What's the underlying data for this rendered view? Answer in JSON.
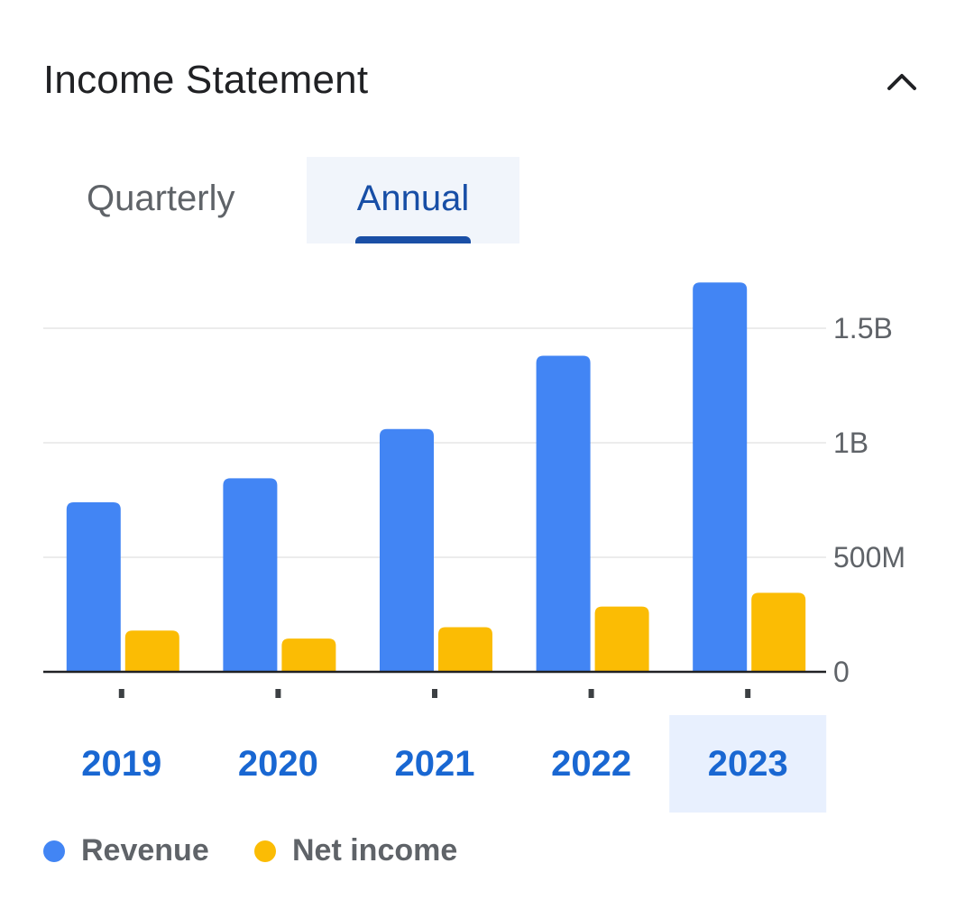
{
  "header": {
    "title": "Income Statement",
    "collapse_icon": "chevron-up-icon"
  },
  "tabs": [
    {
      "label": "Quarterly",
      "selected": false
    },
    {
      "label": "Annual",
      "selected": true
    }
  ],
  "colors": {
    "revenue": "#4285f4",
    "net_income": "#fbbc04",
    "selected_tab_bg": "#f1f5fb",
    "accent": "#1a4fa6"
  },
  "chart_data": {
    "type": "bar",
    "categories": [
      "2019",
      "2020",
      "2021",
      "2022",
      "2023"
    ],
    "selected_category": "2023",
    "series": [
      {
        "name": "Revenue",
        "color": "#4285f4",
        "values": [
          740000000,
          845000000,
          1060000000,
          1380000000,
          1700000000
        ]
      },
      {
        "name": "Net income",
        "color": "#fbbc04",
        "values": [
          180000000,
          145000000,
          195000000,
          285000000,
          345000000
        ]
      }
    ],
    "y_ticks": [
      {
        "value": 0,
        "label": "0"
      },
      {
        "value": 500000000,
        "label": "500M"
      },
      {
        "value": 1000000000,
        "label": "1B"
      },
      {
        "value": 1500000000,
        "label": "1.5B"
      }
    ],
    "ylim": [
      0,
      1500000000
    ],
    "yaxis_position": "right",
    "grid": true,
    "legend_position": "bottom-left"
  },
  "legend": [
    {
      "label": "Revenue",
      "color": "#4285f4"
    },
    {
      "label": "Net income",
      "color": "#fbbc04"
    }
  ]
}
